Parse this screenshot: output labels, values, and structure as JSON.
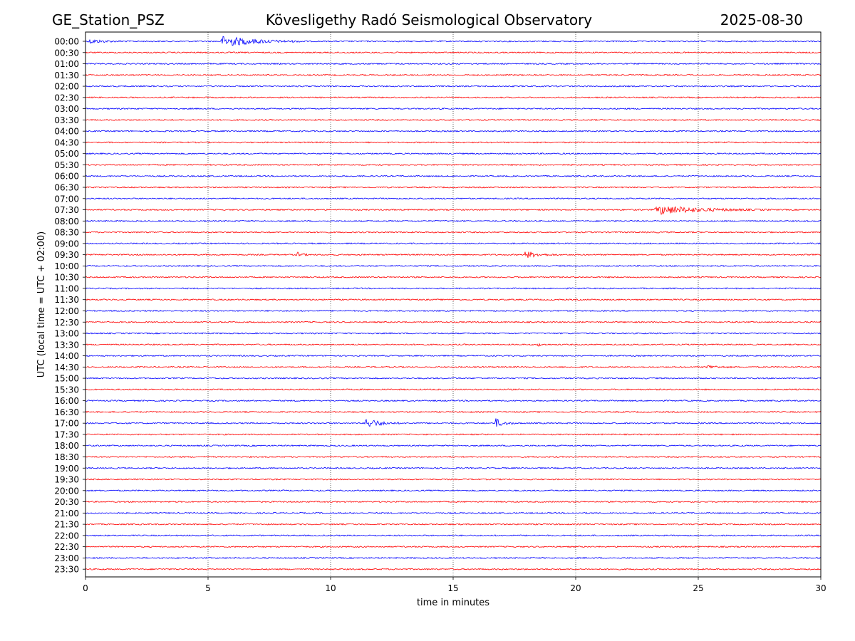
{
  "header": {
    "station": "GE_Station_PSZ",
    "observatory": "Kövesligethy Radó Seismological Observatory",
    "date": "2025-08-30"
  },
  "chart_data": {
    "type": "line",
    "title": "Kövesligethy Radó Seismological Observatory",
    "xlabel": "time in minutes",
    "ylabel": "UTC (local time = UTC + 02:00)",
    "xlim": [
      0,
      30
    ],
    "x_ticks": [
      0,
      5,
      10,
      15,
      20,
      25,
      30
    ],
    "vertical_gridlines": [
      5,
      10,
      15,
      20,
      25
    ],
    "grid": "vertical dotted",
    "row_labels": [
      "00:00",
      "00:30",
      "01:00",
      "01:30",
      "02:00",
      "02:30",
      "03:00",
      "03:30",
      "04:00",
      "04:30",
      "05:00",
      "05:30",
      "06:00",
      "06:30",
      "07:00",
      "07:30",
      "08:00",
      "08:30",
      "09:00",
      "09:30",
      "10:00",
      "10:30",
      "11:00",
      "11:30",
      "12:00",
      "12:30",
      "13:00",
      "13:30",
      "14:00",
      "14:30",
      "15:00",
      "15:30",
      "16:00",
      "16:30",
      "17:00",
      "17:30",
      "18:00",
      "18:30",
      "19:00",
      "19:30",
      "20:00",
      "20:30",
      "21:00",
      "21:30",
      "22:00",
      "22:30",
      "23:00",
      "23:30"
    ],
    "trace_colors": [
      "#0000ff",
      "#ff0000"
    ],
    "events": [
      {
        "row": "00:00",
        "start_min": 0.1,
        "end_min": 1.8,
        "amplitude": 0.35
      },
      {
        "row": "00:00",
        "start_min": 5.5,
        "end_min": 9.0,
        "amplitude": 1.0
      },
      {
        "row": "07:30",
        "start_min": 23.2,
        "end_min": 28.0,
        "amplitude": 0.8
      },
      {
        "row": "09:30",
        "start_min": 8.6,
        "end_min": 9.2,
        "amplitude": 0.45
      },
      {
        "row": "09:30",
        "start_min": 17.9,
        "end_min": 19.3,
        "amplitude": 0.65
      },
      {
        "row": "13:30",
        "start_min": 18.4,
        "end_min": 18.9,
        "amplitude": 0.3
      },
      {
        "row": "14:30",
        "start_min": 25.3,
        "end_min": 26.6,
        "amplitude": 0.3
      },
      {
        "row": "17:00",
        "start_min": 11.4,
        "end_min": 12.8,
        "amplitude": 1.0
      },
      {
        "row": "17:00",
        "start_min": 16.7,
        "end_min": 17.6,
        "amplitude": 0.8
      }
    ]
  }
}
